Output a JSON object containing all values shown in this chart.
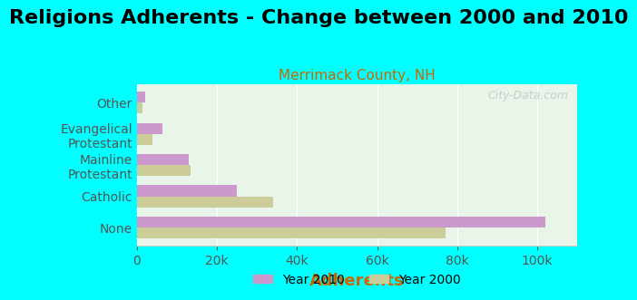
{
  "title": "Religions Adherents - Change between 2000 and 2010",
  "subtitle": "Merrimack County, NH",
  "xlabel": "Adherents",
  "watermark": "City-Data.com",
  "categories": [
    "None",
    "Catholic",
    "Mainline\nProtestant",
    "Evangelical\nProtestant",
    "Other"
  ],
  "values_2010": [
    102000,
    25000,
    13000,
    6500,
    2000
  ],
  "values_2000": [
    77000,
    34000,
    13500,
    4000,
    1500
  ],
  "color_2010": "#cc99cc",
  "color_2000": "#cccc99",
  "bg_color": "#e8f5e8",
  "outer_bg": "#00ffff",
  "xlim": [
    0,
    110000
  ],
  "bar_height": 0.35,
  "legend_label_2010": "Year 2010",
  "legend_label_2000": "Year 2000",
  "title_fontsize": 16,
  "subtitle_fontsize": 11,
  "xlabel_fontsize": 13,
  "tick_fontsize": 10,
  "label_fontsize": 10
}
